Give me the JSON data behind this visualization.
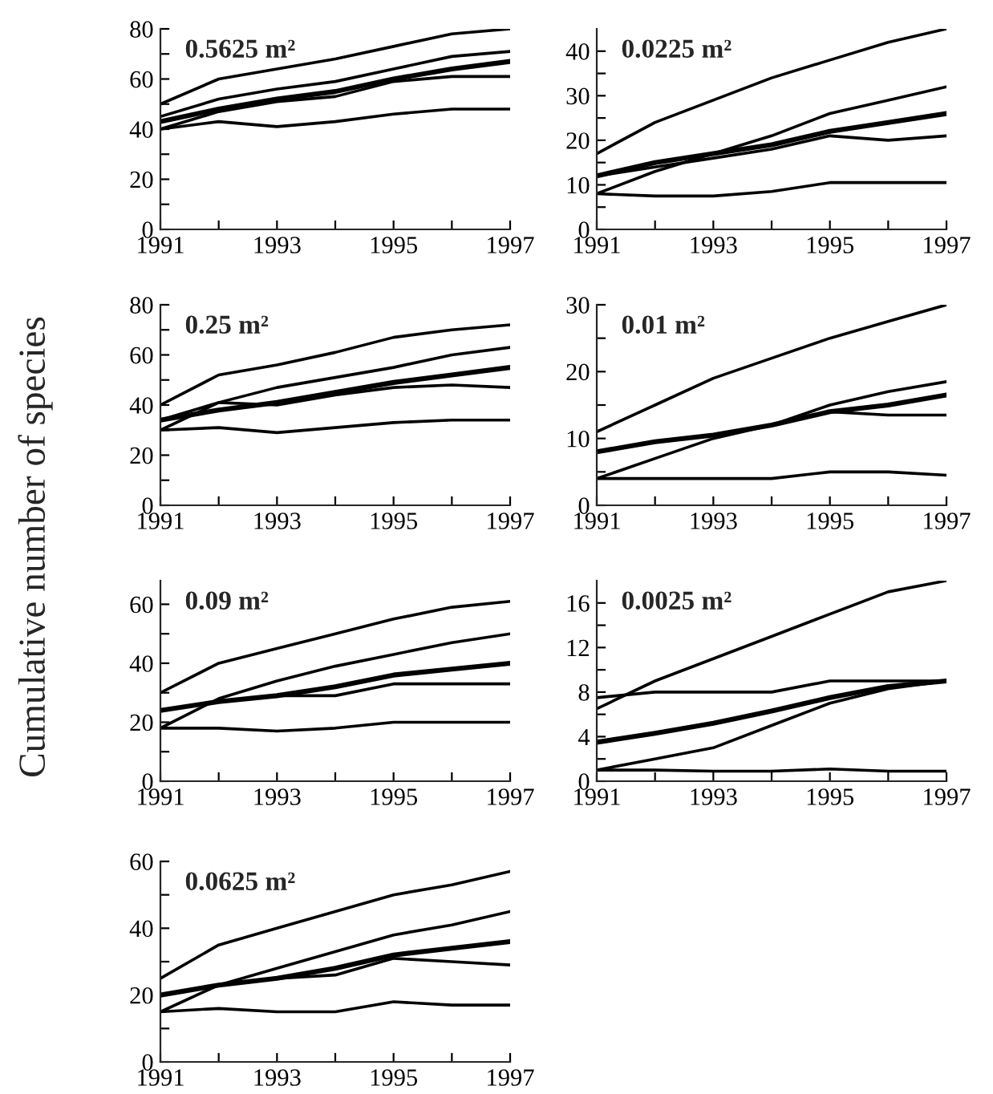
{
  "chart_data": [
    {
      "type": "line",
      "title": "0.5625 m²",
      "ylabel": "Cumulative number of species",
      "x": [
        1991,
        1992,
        1993,
        1994,
        1995,
        1996,
        1997
      ],
      "xlim": [
        1991,
        1997
      ],
      "xticks": [
        1991,
        {
          "value": 1992,
          "label": null
        },
        1993,
        {
          "value": 1994,
          "label": null
        },
        1995,
        {
          "value": 1996,
          "label": null
        },
        1997
      ],
      "ylim": [
        0,
        80
      ],
      "yticks": [
        0,
        {
          "value": 10,
          "label": null
        },
        20,
        {
          "value": 30,
          "label": null
        },
        40,
        {
          "value": 50,
          "label": null
        },
        60,
        {
          "value": 70,
          "label": null
        },
        80
      ],
      "grid": false,
      "legend": false,
      "marker": "none",
      "line_style": "solid",
      "series": [
        {
          "color": "#000000",
          "values": [
            50,
            60,
            64,
            68,
            73,
            78,
            80
          ]
        },
        {
          "color": "#000000",
          "values": [
            45,
            52,
            56,
            59,
            64,
            69,
            71
          ]
        },
        {
          "color": "#000000",
          "values": [
            43,
            48,
            52,
            55,
            60,
            64,
            67
          ]
        },
        {
          "color": "#000000",
          "values": [
            40,
            47,
            51,
            53,
            59,
            61,
            61
          ]
        },
        {
          "color": "#000000",
          "values": [
            40,
            43,
            41,
            43,
            46,
            48,
            48
          ]
        }
      ]
    },
    {
      "type": "line",
      "title": "0.0225 m²",
      "x": [
        1991,
        1992,
        1993,
        1994,
        1995,
        1996,
        1997
      ],
      "xlim": [
        1991,
        1997
      ],
      "xticks": [
        1991,
        {
          "value": 1992,
          "label": null
        },
        1993,
        {
          "value": 1994,
          "label": null
        },
        1995,
        {
          "value": 1996,
          "label": null
        },
        1997
      ],
      "ylim": [
        0,
        45
      ],
      "yticks": [
        0,
        {
          "value": 5,
          "label": null
        },
        10,
        {
          "value": 15,
          "label": null
        },
        20,
        {
          "value": 25,
          "label": null
        },
        30,
        {
          "value": 35,
          "label": null
        },
        40
      ],
      "grid": false,
      "legend": false,
      "marker": "none",
      "line_style": "solid",
      "series": [
        {
          "color": "#000000",
          "values": [
            17,
            24,
            29,
            34,
            38,
            42,
            45
          ]
        },
        {
          "color": "#000000",
          "values": [
            8,
            13,
            17,
            21,
            26,
            29,
            32
          ]
        },
        {
          "color": "#000000",
          "values": [
            12,
            15,
            17,
            19,
            22,
            24,
            26
          ]
        },
        {
          "color": "#000000",
          "values": [
            12,
            14,
            16,
            18,
            21,
            20,
            21
          ]
        },
        {
          "color": "#000000",
          "values": [
            8,
            7.5,
            7.5,
            8.5,
            10.5,
            10.5,
            10.5
          ]
        }
      ]
    },
    {
      "type": "line",
      "title": "0.25 m²",
      "x": [
        1991,
        1992,
        1993,
        1994,
        1995,
        1996,
        1997
      ],
      "xlim": [
        1991,
        1997
      ],
      "xticks": [
        1991,
        {
          "value": 1992,
          "label": null
        },
        1993,
        {
          "value": 1994,
          "label": null
        },
        1995,
        {
          "value": 1996,
          "label": null
        },
        1997
      ],
      "ylim": [
        0,
        80
      ],
      "yticks": [
        0,
        {
          "value": 10,
          "label": null
        },
        20,
        {
          "value": 30,
          "label": null
        },
        40,
        {
          "value": 50,
          "label": null
        },
        60,
        {
          "value": 70,
          "label": null
        },
        80
      ],
      "grid": false,
      "legend": false,
      "marker": "none",
      "line_style": "solid",
      "series": [
        {
          "color": "#000000",
          "values": [
            40,
            52,
            56,
            61,
            67,
            70,
            72
          ]
        },
        {
          "color": "#000000",
          "values": [
            30,
            41,
            47,
            51,
            55,
            60,
            63
          ]
        },
        {
          "color": "#000000",
          "values": [
            34,
            38,
            41,
            45,
            49,
            52,
            55
          ]
        },
        {
          "color": "#000000",
          "values": [
            34,
            41,
            40,
            44,
            47,
            48,
            47
          ]
        },
        {
          "color": "#000000",
          "values": [
            30,
            31,
            29,
            31,
            33,
            34,
            34
          ]
        }
      ]
    },
    {
      "type": "line",
      "title": "0.01 m²",
      "x": [
        1991,
        1992,
        1993,
        1994,
        1995,
        1996,
        1997
      ],
      "xlim": [
        1991,
        1997
      ],
      "xticks": [
        1991,
        {
          "value": 1992,
          "label": null
        },
        1993,
        {
          "value": 1994,
          "label": null
        },
        1995,
        {
          "value": 1996,
          "label": null
        },
        1997
      ],
      "ylim": [
        0,
        30
      ],
      "yticks": [
        0,
        {
          "value": 5,
          "label": null
        },
        10,
        {
          "value": 15,
          "label": null
        },
        20,
        {
          "value": 25,
          "label": null
        },
        30
      ],
      "grid": false,
      "legend": false,
      "marker": "none",
      "line_style": "solid",
      "series": [
        {
          "color": "#000000",
          "values": [
            11,
            15,
            19,
            22,
            25,
            27.5,
            30
          ]
        },
        {
          "color": "#000000",
          "values": [
            4,
            7,
            10,
            12,
            15,
            17,
            18.5
          ]
        },
        {
          "color": "#000000",
          "values": [
            8,
            9.5,
            10.5,
            12,
            14,
            15,
            16.5
          ]
        },
        {
          "color": "#000000",
          "values": [
            8,
            9.5,
            10.5,
            12,
            14,
            13.5,
            13.5
          ]
        },
        {
          "color": "#000000",
          "values": [
            4,
            4,
            4,
            4,
            5,
            5,
            4.5
          ]
        }
      ]
    },
    {
      "type": "line",
      "title": "0.09 m²",
      "x": [
        1991,
        1992,
        1993,
        1994,
        1995,
        1996,
        1997
      ],
      "xlim": [
        1991,
        1997
      ],
      "xticks": [
        1991,
        {
          "value": 1992,
          "label": null
        },
        1993,
        {
          "value": 1994,
          "label": null
        },
        1995,
        {
          "value": 1996,
          "label": null
        },
        1997
      ],
      "ylim": [
        0,
        68
      ],
      "yticks": [
        0,
        {
          "value": 10,
          "label": null
        },
        20,
        {
          "value": 30,
          "label": null
        },
        40,
        {
          "value": 50,
          "label": null
        },
        60
      ],
      "grid": false,
      "legend": false,
      "marker": "none",
      "line_style": "solid",
      "series": [
        {
          "color": "#000000",
          "values": [
            30,
            40,
            45,
            50,
            55,
            59,
            61
          ]
        },
        {
          "color": "#000000",
          "values": [
            18,
            28,
            34,
            39,
            43,
            47,
            50
          ]
        },
        {
          "color": "#000000",
          "values": [
            24,
            27,
            29,
            32,
            36,
            38,
            40
          ]
        },
        {
          "color": "#000000",
          "values": [
            24,
            27,
            29,
            29,
            33,
            33,
            33
          ]
        },
        {
          "color": "#000000",
          "values": [
            18,
            18,
            17,
            18,
            20,
            20,
            20
          ]
        }
      ]
    },
    {
      "type": "line",
      "title": "0.0025 m²",
      "x": [
        1991,
        1992,
        1993,
        1994,
        1995,
        1996,
        1997
      ],
      "xlim": [
        1991,
        1997
      ],
      "xticks": [
        1991,
        {
          "value": 1992,
          "label": null
        },
        1993,
        {
          "value": 1994,
          "label": null
        },
        1995,
        {
          "value": 1996,
          "label": null
        },
        1997
      ],
      "ylim": [
        0,
        18
      ],
      "yticks": [
        0,
        {
          "value": 2,
          "label": null
        },
        4,
        {
          "value": 6,
          "label": null
        },
        8,
        {
          "value": 10,
          "label": null
        },
        12,
        {
          "value": 14,
          "label": null
        },
        16
      ],
      "grid": false,
      "legend": false,
      "marker": "none",
      "line_style": "solid",
      "series": [
        {
          "color": "#000000",
          "values": [
            6.5,
            9,
            11,
            13,
            15,
            17,
            18
          ]
        },
        {
          "color": "#000000",
          "values": [
            7.5,
            8,
            8,
            8,
            9,
            9,
            9
          ]
        },
        {
          "color": "#000000",
          "values": [
            3.5,
            4.3,
            5.2,
            6.3,
            7.5,
            8.5,
            9
          ]
        },
        {
          "color": "#000000",
          "values": [
            1,
            2,
            3,
            5,
            7,
            8.3,
            9
          ]
        },
        {
          "color": "#000000",
          "values": [
            1,
            1,
            0.9,
            0.9,
            1.1,
            0.9,
            0.9
          ]
        }
      ]
    },
    {
      "type": "line",
      "title": "0.0625 m²",
      "x": [
        1991,
        1992,
        1993,
        1994,
        1995,
        1996,
        1997
      ],
      "xlim": [
        1991,
        1997
      ],
      "xticks": [
        1991,
        {
          "value": 1992,
          "label": null
        },
        1993,
        {
          "value": 1994,
          "label": null
        },
        1995,
        {
          "value": 1996,
          "label": null
        },
        1997
      ],
      "ylim": [
        0,
        60
      ],
      "yticks": [
        0,
        {
          "value": 10,
          "label": null
        },
        20,
        {
          "value": 30,
          "label": null
        },
        40,
        {
          "value": 50,
          "label": null
        },
        60
      ],
      "grid": false,
      "legend": false,
      "marker": "none",
      "line_style": "solid",
      "series": [
        {
          "color": "#000000",
          "values": [
            25,
            35,
            40,
            45,
            50,
            53,
            57
          ]
        },
        {
          "color": "#000000",
          "values": [
            15,
            23,
            28,
            33,
            38,
            41,
            45
          ]
        },
        {
          "color": "#000000",
          "values": [
            20,
            23,
            25,
            28,
            32,
            34,
            36
          ]
        },
        {
          "color": "#000000",
          "values": [
            20,
            23,
            25,
            26,
            31,
            30,
            29
          ]
        },
        {
          "color": "#000000",
          "values": [
            15,
            16,
            15,
            15,
            18,
            17,
            17
          ]
        }
      ]
    }
  ]
}
